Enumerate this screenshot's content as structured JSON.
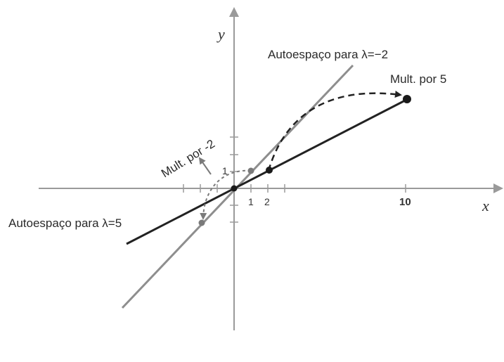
{
  "axes": {
    "x_label": "x",
    "y_label": "y",
    "x_tick_labels": [
      "1",
      "2",
      "10"
    ],
    "y_tick_labels": [
      "1"
    ]
  },
  "lines": {
    "eigenspace_minus2_label": "Autoespaço para λ=−2",
    "eigenspace_5_label": "Autoespaço para λ=5"
  },
  "annotations": {
    "mult_5": "Mult. por 5",
    "mult_minus2": "Mult. por -2"
  },
  "colors": {
    "axis": "#9a9a9a",
    "eigenspace_minus2": "#8e8e8e",
    "eigenspace_5": "#222222",
    "points_minus2": "#7a7a7a",
    "points_5": "#1a1a1a"
  }
}
